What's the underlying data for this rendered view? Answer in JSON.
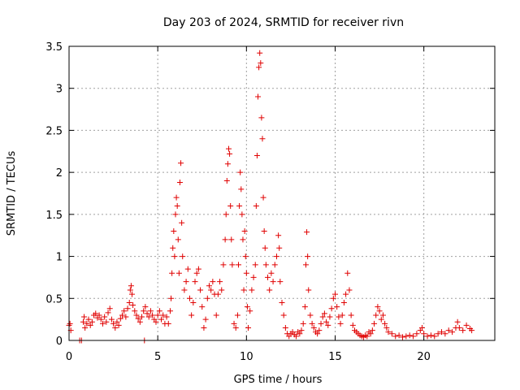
{
  "chart_data": {
    "type": "scatter",
    "title": "Day 203 of 2024, SRMTID for receiver rivn",
    "xlabel": "GPS time / hours",
    "ylabel": "SRMTID / TECUs",
    "xlim": [
      0,
      24
    ],
    "ylim": [
      0,
      3.5
    ],
    "xticks": [
      0,
      5,
      10,
      15,
      20
    ],
    "xtick_labels": [
      "0",
      "5",
      "10",
      "15",
      "20"
    ],
    "yticks": [
      0,
      0.5,
      1,
      1.5,
      2,
      2.5,
      3,
      3.5
    ],
    "ytick_labels": [
      "0",
      "0.5",
      "1",
      "1.5",
      "2",
      "2.5",
      "3",
      "3.5"
    ],
    "grid": true,
    "marker": "+",
    "color": "#e00000",
    "series": [
      {
        "name": "SRMTID",
        "points": [
          [
            0.0,
            0.18
          ],
          [
            0.05,
            0.2
          ],
          [
            0.1,
            0.12
          ],
          [
            0.6,
            0.0
          ],
          [
            0.7,
            0.0
          ],
          [
            0.8,
            0.22
          ],
          [
            0.85,
            0.28
          ],
          [
            0.9,
            0.15
          ],
          [
            1.0,
            0.2
          ],
          [
            1.1,
            0.25
          ],
          [
            1.2,
            0.18
          ],
          [
            1.3,
            0.22
          ],
          [
            1.4,
            0.3
          ],
          [
            1.5,
            0.32
          ],
          [
            1.6,
            0.27
          ],
          [
            1.7,
            0.3
          ],
          [
            1.8,
            0.25
          ],
          [
            1.9,
            0.2
          ],
          [
            2.0,
            0.28
          ],
          [
            2.1,
            0.22
          ],
          [
            2.2,
            0.33
          ],
          [
            2.3,
            0.38
          ],
          [
            2.4,
            0.25
          ],
          [
            2.5,
            0.2
          ],
          [
            2.6,
            0.15
          ],
          [
            2.7,
            0.22
          ],
          [
            2.8,
            0.18
          ],
          [
            2.9,
            0.26
          ],
          [
            3.0,
            0.3
          ],
          [
            3.1,
            0.35
          ],
          [
            3.2,
            0.28
          ],
          [
            3.3,
            0.38
          ],
          [
            3.4,
            0.45
          ],
          [
            3.45,
            0.6
          ],
          [
            3.5,
            0.65
          ],
          [
            3.55,
            0.55
          ],
          [
            3.6,
            0.42
          ],
          [
            3.7,
            0.35
          ],
          [
            3.8,
            0.3
          ],
          [
            3.9,
            0.26
          ],
          [
            4.0,
            0.22
          ],
          [
            4.1,
            0.28
          ],
          [
            4.2,
            0.35
          ],
          [
            4.25,
            0.0
          ],
          [
            4.3,
            0.4
          ],
          [
            4.4,
            0.32
          ],
          [
            4.5,
            0.28
          ],
          [
            4.6,
            0.35
          ],
          [
            4.7,
            0.3
          ],
          [
            4.8,
            0.25
          ],
          [
            4.9,
            0.22
          ],
          [
            5.0,
            0.3
          ],
          [
            5.1,
            0.35
          ],
          [
            5.2,
            0.25
          ],
          [
            5.3,
            0.3
          ],
          [
            5.4,
            0.2
          ],
          [
            5.5,
            0.28
          ],
          [
            5.6,
            0.2
          ],
          [
            5.7,
            0.35
          ],
          [
            5.75,
            0.5
          ],
          [
            5.8,
            0.8
          ],
          [
            5.85,
            1.1
          ],
          [
            5.9,
            1.3
          ],
          [
            5.95,
            1.0
          ],
          [
            6.0,
            1.5
          ],
          [
            6.05,
            1.7
          ],
          [
            6.1,
            1.6
          ],
          [
            6.15,
            1.2
          ],
          [
            6.2,
            0.8
          ],
          [
            6.25,
            1.88
          ],
          [
            6.3,
            2.11
          ],
          [
            6.35,
            1.4
          ],
          [
            6.4,
            1.0
          ],
          [
            6.5,
            0.6
          ],
          [
            6.6,
            0.7
          ],
          [
            6.7,
            0.85
          ],
          [
            6.8,
            0.5
          ],
          [
            6.9,
            0.3
          ],
          [
            7.0,
            0.45
          ],
          [
            7.1,
            0.7
          ],
          [
            7.2,
            0.8
          ],
          [
            7.3,
            0.85
          ],
          [
            7.4,
            0.6
          ],
          [
            7.5,
            0.4
          ],
          [
            7.6,
            0.15
          ],
          [
            7.7,
            0.25
          ],
          [
            7.8,
            0.5
          ],
          [
            7.9,
            0.65
          ],
          [
            8.0,
            0.6
          ],
          [
            8.1,
            0.7
          ],
          [
            8.2,
            0.55
          ],
          [
            8.3,
            0.3
          ],
          [
            8.4,
            0.55
          ],
          [
            8.5,
            0.7
          ],
          [
            8.6,
            0.6
          ],
          [
            8.7,
            0.9
          ],
          [
            8.8,
            1.2
          ],
          [
            8.85,
            1.5
          ],
          [
            8.9,
            1.9
          ],
          [
            8.95,
            2.1
          ],
          [
            9.0,
            2.28
          ],
          [
            9.05,
            2.22
          ],
          [
            9.1,
            1.6
          ],
          [
            9.15,
            1.2
          ],
          [
            9.2,
            0.9
          ],
          [
            9.3,
            0.2
          ],
          [
            9.4,
            0.15
          ],
          [
            9.5,
            0.3
          ],
          [
            9.55,
            0.9
          ],
          [
            9.6,
            1.6
          ],
          [
            9.65,
            2.0
          ],
          [
            9.7,
            1.8
          ],
          [
            9.75,
            1.5
          ],
          [
            9.8,
            1.2
          ],
          [
            9.85,
            0.6
          ],
          [
            9.9,
            1.3
          ],
          [
            9.95,
            1.0
          ],
          [
            10.0,
            0.8
          ],
          [
            10.05,
            0.4
          ],
          [
            10.1,
            0.15
          ],
          [
            10.2,
            0.35
          ],
          [
            10.3,
            0.6
          ],
          [
            10.4,
            0.75
          ],
          [
            10.5,
            0.9
          ],
          [
            10.55,
            1.6
          ],
          [
            10.6,
            2.2
          ],
          [
            10.65,
            2.9
          ],
          [
            10.7,
            3.25
          ],
          [
            10.75,
            3.42
          ],
          [
            10.8,
            3.3
          ],
          [
            10.85,
            2.65
          ],
          [
            10.9,
            2.4
          ],
          [
            10.95,
            1.7
          ],
          [
            11.0,
            1.3
          ],
          [
            11.05,
            1.1
          ],
          [
            11.1,
            0.9
          ],
          [
            11.2,
            0.75
          ],
          [
            11.3,
            0.6
          ],
          [
            11.4,
            0.8
          ],
          [
            11.5,
            0.7
          ],
          [
            11.6,
            0.9
          ],
          [
            11.7,
            1.0
          ],
          [
            11.8,
            1.25
          ],
          [
            11.85,
            1.1
          ],
          [
            11.9,
            0.7
          ],
          [
            12.0,
            0.45
          ],
          [
            12.1,
            0.3
          ],
          [
            12.2,
            0.15
          ],
          [
            12.3,
            0.08
          ],
          [
            12.4,
            0.05
          ],
          [
            12.5,
            0.08
          ],
          [
            12.6,
            0.1
          ],
          [
            12.7,
            0.07
          ],
          [
            12.8,
            0.05
          ],
          [
            12.9,
            0.1
          ],
          [
            13.0,
            0.08
          ],
          [
            13.1,
            0.12
          ],
          [
            13.2,
            0.2
          ],
          [
            13.3,
            0.4
          ],
          [
            13.35,
            0.9
          ],
          [
            13.4,
            1.29
          ],
          [
            13.45,
            1.0
          ],
          [
            13.5,
            0.6
          ],
          [
            13.6,
            0.3
          ],
          [
            13.7,
            0.2
          ],
          [
            13.8,
            0.15
          ],
          [
            13.9,
            0.1
          ],
          [
            14.0,
            0.08
          ],
          [
            14.1,
            0.12
          ],
          [
            14.2,
            0.2
          ],
          [
            14.3,
            0.28
          ],
          [
            14.4,
            0.32
          ],
          [
            14.5,
            0.22
          ],
          [
            14.6,
            0.18
          ],
          [
            14.7,
            0.28
          ],
          [
            14.8,
            0.38
          ],
          [
            14.9,
            0.5
          ],
          [
            15.0,
            0.55
          ],
          [
            15.1,
            0.4
          ],
          [
            15.2,
            0.28
          ],
          [
            15.3,
            0.2
          ],
          [
            15.4,
            0.3
          ],
          [
            15.5,
            0.45
          ],
          [
            15.6,
            0.55
          ],
          [
            15.7,
            0.8
          ],
          [
            15.8,
            0.6
          ],
          [
            15.9,
            0.3
          ],
          [
            16.0,
            0.18
          ],
          [
            16.1,
            0.12
          ],
          [
            16.2,
            0.1
          ],
          [
            16.3,
            0.08
          ],
          [
            16.4,
            0.06
          ],
          [
            16.5,
            0.05
          ],
          [
            16.6,
            0.04
          ],
          [
            16.7,
            0.06
          ],
          [
            16.8,
            0.05
          ],
          [
            16.9,
            0.1
          ],
          [
            17.0,
            0.08
          ],
          [
            17.1,
            0.12
          ],
          [
            17.2,
            0.2
          ],
          [
            17.3,
            0.3
          ],
          [
            17.4,
            0.4
          ],
          [
            17.5,
            0.35
          ],
          [
            17.6,
            0.25
          ],
          [
            17.7,
            0.3
          ],
          [
            17.8,
            0.2
          ],
          [
            17.9,
            0.15
          ],
          [
            18.0,
            0.1
          ],
          [
            18.2,
            0.08
          ],
          [
            18.4,
            0.05
          ],
          [
            18.6,
            0.06
          ],
          [
            18.8,
            0.04
          ],
          [
            19.0,
            0.05
          ],
          [
            19.2,
            0.06
          ],
          [
            19.4,
            0.05
          ],
          [
            19.6,
            0.08
          ],
          [
            19.8,
            0.12
          ],
          [
            19.9,
            0.15
          ],
          [
            20.0,
            0.08
          ],
          [
            20.2,
            0.05
          ],
          [
            20.4,
            0.06
          ],
          [
            20.6,
            0.05
          ],
          [
            20.8,
            0.08
          ],
          [
            21.0,
            0.1
          ],
          [
            21.2,
            0.08
          ],
          [
            21.4,
            0.12
          ],
          [
            21.6,
            0.1
          ],
          [
            21.8,
            0.15
          ],
          [
            21.9,
            0.22
          ],
          [
            22.0,
            0.15
          ],
          [
            22.2,
            0.12
          ],
          [
            22.4,
            0.18
          ],
          [
            22.6,
            0.14
          ],
          [
            22.7,
            0.12
          ]
        ]
      }
    ]
  }
}
